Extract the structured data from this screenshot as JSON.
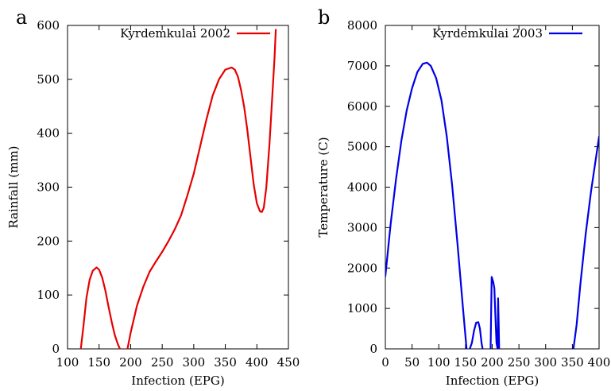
{
  "chart_data": [
    {
      "panel_letter": "a",
      "type": "line",
      "xlabel": "Infection (EPG)",
      "ylabel": "Rainfall (mm)",
      "xlim": [
        100,
        450
      ],
      "ylim": [
        0,
        600
      ],
      "xticks": [
        100,
        150,
        200,
        250,
        300,
        350,
        400,
        450
      ],
      "yticks": [
        0,
        100,
        200,
        300,
        400,
        500,
        600
      ],
      "legend_placement": "top-right",
      "series": [
        {
          "name": "Kyrdemkulai 2002",
          "color": "#e60000",
          "segments": [
            [
              [
                121,
                0
              ],
              [
                125,
                40
              ],
              [
                130,
                95
              ],
              [
                135,
                128
              ],
              [
                140,
                145
              ],
              [
                146,
                151
              ],
              [
                150,
                147
              ],
              [
                155,
                132
              ],
              [
                160,
                108
              ],
              [
                165,
                78
              ],
              [
                170,
                50
              ],
              [
                175,
                25
              ],
              [
                180,
                8
              ],
              [
                183,
                0
              ]
            ],
            [
              [
                195,
                0
              ],
              [
                200,
                30
              ],
              [
                205,
                55
              ],
              [
                210,
                80
              ],
              [
                220,
                115
              ],
              [
                230,
                143
              ],
              [
                240,
                162
              ],
              [
                250,
                180
              ],
              [
                260,
                200
              ],
              [
                270,
                222
              ],
              [
                280,
                248
              ],
              [
                290,
                285
              ],
              [
                300,
                325
              ],
              [
                310,
                375
              ],
              [
                320,
                425
              ],
              [
                330,
                470
              ],
              [
                340,
                500
              ],
              [
                350,
                518
              ],
              [
                360,
                522
              ],
              [
                365,
                518
              ],
              [
                370,
                505
              ],
              [
                375,
                480
              ],
              [
                380,
                448
              ],
              [
                385,
                405
              ],
              [
                390,
                355
              ],
              [
                395,
                305
              ],
              [
                400,
                270
              ],
              [
                405,
                255
              ],
              [
                408,
                254
              ],
              [
                411,
                262
              ],
              [
                415,
                300
              ],
              [
                420,
                380
              ],
              [
                425,
                480
              ],
              [
                428,
                540
              ],
              [
                430,
                592
              ]
            ]
          ]
        }
      ]
    },
    {
      "panel_letter": "b",
      "type": "line",
      "xlabel": "Infection (EPG)",
      "ylabel": "Temperature (C)",
      "xlim": [
        0,
        400
      ],
      "ylim": [
        0,
        8000
      ],
      "xticks": [
        0,
        50,
        100,
        150,
        200,
        250,
        300,
        350,
        400
      ],
      "yticks": [
        0,
        1000,
        2000,
        3000,
        4000,
        5000,
        6000,
        7000,
        8000
      ],
      "legend_placement": "top-right",
      "series": [
        {
          "name": "Kyrdemkulai 2003",
          "color": "#0000e6",
          "segments": [
            [
              [
                0,
                1800
              ],
              [
                5,
                2450
              ],
              [
                10,
                3100
              ],
              [
                20,
                4200
              ],
              [
                30,
                5150
              ],
              [
                40,
                5900
              ],
              [
                50,
                6450
              ],
              [
                60,
                6850
              ],
              [
                70,
                7050
              ],
              [
                78,
                7080
              ],
              [
                85,
                7000
              ],
              [
                95,
                6700
              ],
              [
                105,
                6150
              ],
              [
                115,
                5250
              ],
              [
                125,
                4050
              ],
              [
                135,
                2600
              ],
              [
                145,
                1050
              ],
              [
                152,
                0
              ]
            ],
            [
              [
                158,
                0
              ],
              [
                162,
                150
              ],
              [
                166,
                450
              ],
              [
                170,
                650
              ],
              [
                174,
                660
              ],
              [
                177,
                500
              ],
              [
                180,
                150
              ],
              [
                182,
                0
              ]
            ],
            [
              [
                197,
                0
              ],
              [
                198,
                900
              ],
              [
                199,
                1780
              ],
              [
                202,
                1650
              ],
              [
                204,
                1500
              ],
              [
                206,
                800
              ],
              [
                208,
                150
              ],
              [
                210,
                0
              ],
              [
                211,
                1250
              ],
              [
                212,
                700
              ],
              [
                213,
                0
              ]
            ],
            [
              [
                352,
                0
              ],
              [
                358,
                600
              ],
              [
                365,
                1600
              ],
              [
                375,
                2850
              ],
              [
                385,
                3900
              ],
              [
                395,
                4800
              ],
              [
                400,
                5250
              ]
            ]
          ]
        }
      ]
    }
  ]
}
